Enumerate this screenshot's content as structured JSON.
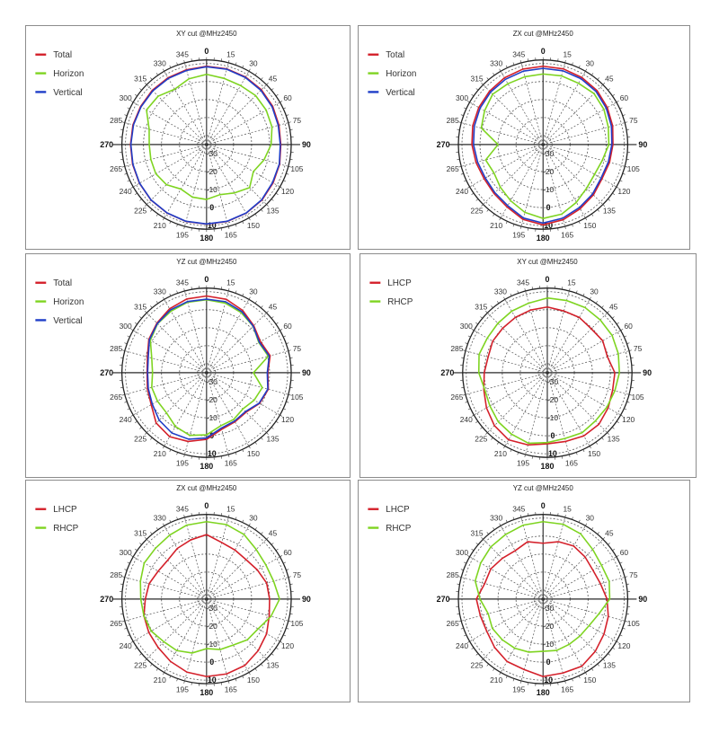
{
  "chart_data": [
    {
      "type": "polar-line",
      "title": "XY cut @MHz2450",
      "angle_labels": [
        "0",
        "15",
        "30",
        "45",
        "60",
        "75",
        "90",
        "105",
        "120",
        "135",
        "150",
        "165",
        "180",
        "195",
        "210",
        "225",
        "240",
        "265",
        "270",
        "285",
        "300",
        "315",
        "330",
        "345"
      ],
      "radial_labels": [
        "-30",
        "-20",
        "-10",
        "0",
        "10"
      ],
      "series": [
        {
          "name": "Total",
          "color": "#d4202a",
          "values": [
            8.5,
            8.5,
            8.3,
            8.0,
            7.4,
            6.6,
            6.2,
            7.0,
            7.6,
            8.5,
            9.0,
            9.2,
            9.2,
            9.2,
            8.9,
            8.6,
            8.0,
            7.5,
            7.2,
            7.3,
            7.3,
            7.6,
            7.8,
            8.0
          ]
        },
        {
          "name": "Horizon",
          "color": "#7ed420",
          "values": [
            4.0,
            3.0,
            2.8,
            3.5,
            3.2,
            2.6,
            0.8,
            -2.0,
            -5.0,
            -1.2,
            -4.0,
            -6.2,
            -4.5,
            -4.8,
            -6.5,
            -3.5,
            -2.5,
            -3.0,
            -3.2,
            -2.0,
            3.5,
            3.0,
            0.5,
            2.8
          ]
        },
        {
          "name": "Vertical",
          "color": "#1f3ec8",
          "values": [
            8.2,
            8.3,
            8.0,
            7.6,
            7.0,
            6.2,
            5.9,
            6.8,
            7.3,
            8.3,
            8.9,
            9.1,
            9.1,
            9.1,
            8.8,
            8.5,
            7.9,
            7.3,
            7.0,
            7.0,
            7.0,
            7.2,
            7.4,
            7.6
          ]
        }
      ]
    },
    {
      "type": "polar-line",
      "title": "ZX cut @MHz2450",
      "angle_labels": [
        "0",
        "15",
        "30",
        "45",
        "60",
        "75",
        "90",
        "105",
        "120",
        "135",
        "150",
        "165",
        "180",
        "195",
        "210",
        "225",
        "240",
        "265",
        "270",
        "285",
        "300",
        "315",
        "330",
        "345"
      ],
      "radial_labels": [
        "-30",
        "-20",
        "-10",
        "0",
        "10"
      ],
      "series": [
        {
          "name": "Total",
          "color": "#d4202a",
          "values": [
            8.5,
            8.5,
            8.0,
            7.4,
            6.2,
            5.0,
            3.8,
            3.2,
            2.8,
            4.5,
            6.2,
            8.2,
            9.6,
            8.0,
            5.0,
            3.5,
            2.8,
            3.5,
            4.5,
            5.4,
            6.2,
            7.0,
            7.8,
            8.4
          ]
        },
        {
          "name": "Horizon",
          "color": "#7ed420",
          "values": [
            4.2,
            4.5,
            4.3,
            5.0,
            4.0,
            2.5,
            1.5,
            -1.0,
            -2.0,
            -0.8,
            2.0,
            5.0,
            6.0,
            4.0,
            1.0,
            -1.5,
            -3.5,
            -2.0,
            -10.0,
            0.5,
            2.5,
            4.5,
            4.0,
            4.0
          ]
        },
        {
          "name": "Vertical",
          "color": "#1f3ec8",
          "values": [
            7.3,
            7.4,
            7.2,
            6.6,
            5.5,
            4.3,
            3.2,
            2.5,
            2.2,
            3.8,
            5.4,
            7.3,
            8.6,
            7.2,
            4.2,
            2.8,
            2.0,
            2.6,
            3.6,
            4.5,
            5.4,
            6.2,
            6.8,
            7.2
          ]
        }
      ]
    },
    {
      "type": "polar-line",
      "title": "YZ cut @MHz2450",
      "angle_labels": [
        "0",
        "15",
        "30",
        "45",
        "60",
        "75",
        "90",
        "105",
        "120",
        "135",
        "150",
        "165",
        "180",
        "195",
        "210",
        "225",
        "240",
        "265",
        "270",
        "285",
        "300",
        "315",
        "330",
        "345"
      ],
      "radial_labels": [
        "-30",
        "-20",
        "-10",
        "0",
        "10"
      ],
      "series": [
        {
          "name": "Total",
          "color": "#d4202a",
          "values": [
            7.6,
            7.2,
            5.0,
            2.0,
            -0.5,
            1.5,
            -1.0,
            0.5,
            -1.0,
            -4.0,
            -3.5,
            -2.5,
            2.0,
            4.5,
            6.0,
            4.5,
            0.5,
            -1.0,
            -2.0,
            -1.0,
            2.0,
            4.0,
            6.0,
            7.4
          ]
        },
        {
          "name": "Horizon",
          "color": "#7ed420",
          "values": [
            5.5,
            5.0,
            3.5,
            1.5,
            -1.5,
            0.5,
            -9.0,
            -3.0,
            -4.5,
            -6.5,
            -5.0,
            -4.5,
            -0.5,
            1.0,
            -0.5,
            -3.5,
            -3.5,
            -3.5,
            -5.0,
            -3.5,
            1.0,
            3.5,
            4.5,
            5.5
          ]
        },
        {
          "name": "Vertical",
          "color": "#1f3ec8",
          "values": [
            5.8,
            5.8,
            4.2,
            1.6,
            -1.2,
            1.0,
            -1.3,
            0.2,
            -1.3,
            -4.5,
            -4.0,
            -3.2,
            1.2,
            3.2,
            3.6,
            2.2,
            -0.2,
            -1.5,
            -2.3,
            -1.5,
            1.6,
            3.6,
            5.2,
            5.9
          ]
        }
      ]
    },
    {
      "type": "polar-line",
      "title": "XY cut @MHz2450",
      "angle_labels": [
        "0",
        "15",
        "30",
        "45",
        "60",
        "75",
        "90",
        "105",
        "120",
        "135",
        "150",
        "165",
        "180",
        "195",
        "210",
        "225",
        "240",
        "265",
        "270",
        "285",
        "300",
        "315",
        "330",
        "345"
      ],
      "radial_labels": [
        "-30",
        "-20",
        "-10",
        "0",
        "10"
      ],
      "series": [
        {
          "name": "LHCP",
          "color": "#d4202a",
          "values": [
            1.5,
            0.5,
            0.5,
            -0.5,
            0.5,
            -0.5,
            2.5,
            2.5,
            4.0,
            5.5,
            5.5,
            4.5,
            4.5,
            6.5,
            8.0,
            6.5,
            4.0,
            1.5,
            0.0,
            -1.0,
            0.0,
            0.0,
            0.5,
            1.0
          ]
        },
        {
          "name": "RHCP",
          "color": "#7ed420",
          "values": [
            6.5,
            6.5,
            6.8,
            6.5,
            6.5,
            5.8,
            5.0,
            3.8,
            3.2,
            2.8,
            3.5,
            2.8,
            3.8,
            5.5,
            4.5,
            3.5,
            1.8,
            1.0,
            3.0,
            4.2,
            3.5,
            3.8,
            4.5,
            5.0
          ]
        }
      ]
    },
    {
      "type": "polar-line",
      "title": "ZX cut @MHz2450",
      "angle_labels": [
        "0",
        "15",
        "30",
        "45",
        "60",
        "75",
        "90",
        "105",
        "120",
        "135",
        "150",
        "165",
        "180",
        "195",
        "210",
        "225",
        "240",
        "265",
        "270",
        "285",
        "300",
        "315",
        "330",
        "345"
      ],
      "radial_labels": [
        "-30",
        "-20",
        "-10",
        "0",
        "10"
      ],
      "series": [
        {
          "name": "LHCP",
          "color": "#d4202a",
          "values": [
            0.8,
            -2.5,
            -3.5,
            -4.0,
            -2.5,
            -0.5,
            0.0,
            1.0,
            3.5,
            5.5,
            7.5,
            8.0,
            8.0,
            7.0,
            5.0,
            3.0,
            2.0,
            1.0,
            -1.0,
            -2.0,
            -4.0,
            -4.5,
            -2.5,
            -1.0
          ]
        },
        {
          "name": "RHCP",
          "color": "#7ed420",
          "values": [
            8.0,
            7.8,
            6.5,
            4.0,
            3.0,
            3.5,
            5.5,
            2.0,
            -2.0,
            -3.0,
            -5.5,
            -6.0,
            -7.5,
            -4.0,
            -2.0,
            -1.5,
            0.5,
            1.0,
            1.5,
            3.0,
            5.0,
            5.0,
            6.0,
            7.5
          ]
        }
      ]
    },
    {
      "type": "polar-line",
      "title": "YZ cut @MHz2450",
      "angle_labels": [
        "0",
        "15",
        "30",
        "45",
        "60",
        "75",
        "90",
        "105",
        "120",
        "135",
        "150",
        "165",
        "180",
        "195",
        "210",
        "225",
        "240",
        "265",
        "270",
        "285",
        "300",
        "315",
        "330",
        "345"
      ],
      "radial_labels": [
        "-30",
        "-20",
        "-10",
        "0",
        "10"
      ],
      "series": [
        {
          "name": "LHCP",
          "color": "#d4202a",
          "values": [
            -4.0,
            -2.0,
            -1.0,
            -2.0,
            -3.0,
            -2.0,
            0.5,
            2.5,
            4.0,
            6.0,
            8.0,
            7.5,
            8.0,
            5.5,
            5.0,
            3.0,
            1.0,
            1.0,
            2.0,
            -1.5,
            -1.5,
            -3.0,
            -4.0,
            -2.0
          ]
        },
        {
          "name": "RHCP",
          "color": "#7ed420",
          "values": [
            8.0,
            8.0,
            6.8,
            4.0,
            2.5,
            3.0,
            2.0,
            -3.0,
            -5.5,
            -6.0,
            -6.0,
            -5.5,
            -6.0,
            -4.5,
            -3.5,
            -3.0,
            -2.5,
            -3.5,
            0.0,
            4.0,
            5.0,
            6.0,
            6.5,
            7.5
          ]
        }
      ]
    }
  ]
}
